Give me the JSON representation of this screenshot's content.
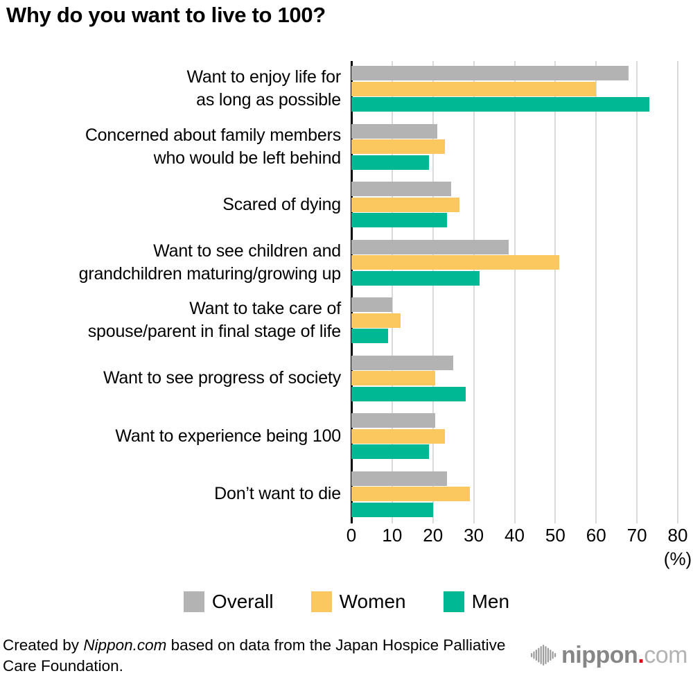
{
  "chart_data": {
    "type": "bar",
    "orientation": "horizontal",
    "title": "Why do you want to live to 100?",
    "unit_label": "(%)",
    "xlim": [
      0,
      80
    ],
    "x_ticks": [
      "0",
      "10",
      "20",
      "30",
      "40",
      "50",
      "60",
      "70",
      "80"
    ],
    "grid": true,
    "legend_position": "bottom",
    "categories": [
      [
        "Want to enjoy life for",
        "as long as possible"
      ],
      [
        "Concerned about family members",
        "who would be left behind"
      ],
      [
        "Scared of dying"
      ],
      [
        "Want to see children and",
        "grandchildren maturing/growing up"
      ],
      [
        "Want to take care of",
        "spouse/parent in final stage of life"
      ],
      [
        "Want to see progress of society"
      ],
      [
        "Want to experience being 100"
      ],
      [
        "Don’t want to die"
      ]
    ],
    "series": [
      {
        "name": "Overall",
        "color": "#b3b3b3",
        "values": [
          68,
          21,
          24.5,
          38.5,
          10,
          25,
          20.5,
          23.5
        ]
      },
      {
        "name": "Women",
        "color": "#fbc75f",
        "values": [
          60,
          23,
          26.5,
          51,
          12,
          20.5,
          23,
          29
        ]
      },
      {
        "name": "Men",
        "color": "#00b894",
        "values": [
          73,
          19,
          23.5,
          31.5,
          9,
          28,
          19,
          20
        ]
      }
    ]
  },
  "footer": {
    "credit_prefix": "Created by ",
    "credit_source": "Nippon.com",
    "credit_suffix": " based on data from the Japan Hospice Palliative Care Foundation."
  },
  "logo": {
    "wordmark_bold": "nippon",
    "wordmark_dot": ".",
    "wordmark_light": "com",
    "icon": "waveform-icon",
    "gray": "#9c9c9c",
    "red": "#e60012"
  }
}
